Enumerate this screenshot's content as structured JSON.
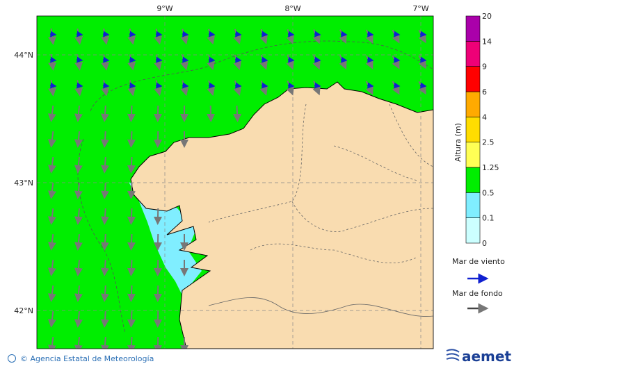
{
  "map": {
    "lon_labels": [
      "9°W",
      "8°W",
      "7°W"
    ],
    "lat_labels": [
      "44°N",
      "43°N",
      "42°N"
    ],
    "colorbar": {
      "title": "Altura (m)",
      "levels": [
        0,
        0.1,
        0.5,
        1.25,
        2.5,
        4,
        6,
        9,
        14,
        20
      ],
      "colors": [
        "#ccffff",
        "#80eeff",
        "#00ee00",
        "#ffff55",
        "#ffdd00",
        "#ffaa00",
        "#ff0000",
        "#ee0077",
        "#aa00aa"
      ]
    }
  },
  "legend": {
    "wind_sea": "Mar de viento",
    "swell": "Mar de fondo"
  },
  "footer": {
    "credit": "© Agencia Estatal de Meteorología",
    "logo": "aemet"
  }
}
